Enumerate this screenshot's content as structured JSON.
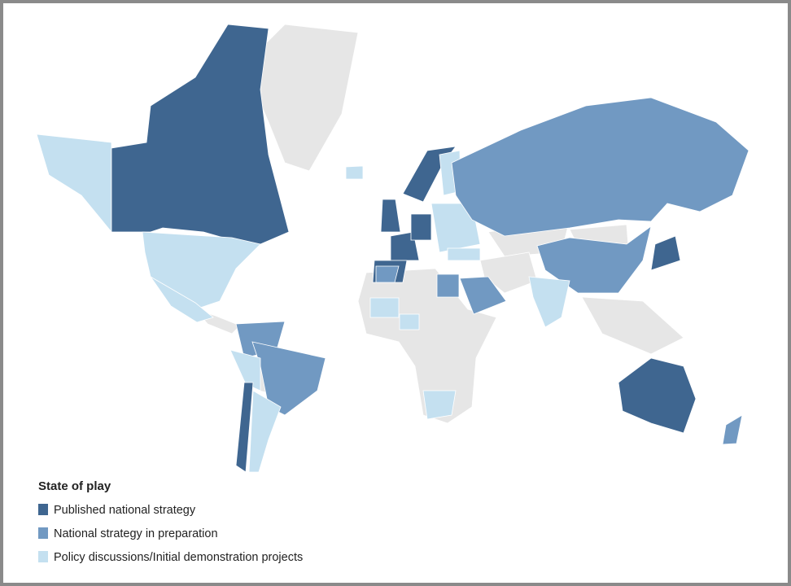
{
  "legend": {
    "title": "State of play",
    "items": [
      {
        "label": "Published national strategy",
        "color": "#3f6690"
      },
      {
        "label": "National strategy in preparation",
        "color": "#7199c2"
      },
      {
        "label": "Policy discussions/Initial demonstration projects",
        "color": "#c4e0f0"
      }
    ]
  }
}
